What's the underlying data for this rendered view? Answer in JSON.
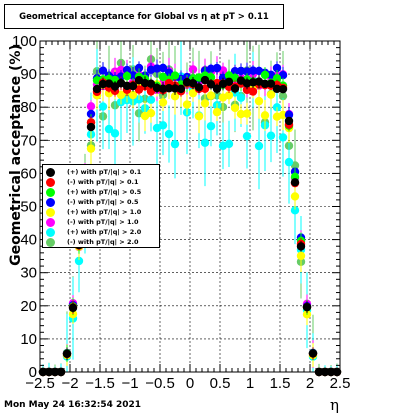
{
  "chart_data": {
    "type": "scatter",
    "title": "Geometrical acceptance for Global vs  η at pT > 0.11",
    "xlabel": "η",
    "ylabel": "Geometrical acceptance (%)",
    "xlim": [
      -2.5,
      2.5
    ],
    "ylim": [
      0,
      100
    ],
    "x_ticks": [
      "−2.5",
      "−2",
      "−1.5",
      "−1",
      "−0.5",
      "0",
      "0.5",
      "1",
      "1.5",
      "2",
      "2.5"
    ],
    "y_ticks": [
      "0",
      "10",
      "20",
      "30",
      "40",
      "50",
      "60",
      "70",
      "80",
      "90",
      "100"
    ],
    "grid": true,
    "legend_position": "left-middle",
    "series": [
      {
        "name": "(+) with pT/|q| > 0.1",
        "color": "#000000",
        "plateau": 87,
        "noise": 1.5,
        "err": 1.5
      },
      {
        "name": "(-) with pT/|q| > 0.1",
        "color": "#ff0000",
        "plateau": 86,
        "noise": 1.5,
        "err": 1.5
      },
      {
        "name": "(+) with pT/|q| > 0.5",
        "color": "#00ff00",
        "plateau": 88,
        "noise": 2,
        "err": 2
      },
      {
        "name": "(-) with pT/|q| > 0.5",
        "color": "#0000ff",
        "plateau": 90,
        "noise": 2,
        "err": 2
      },
      {
        "name": "(+) with pT/|q| > 1.0",
        "color": "#ffff00",
        "plateau": 82,
        "noise": 5,
        "err": 4
      },
      {
        "name": "(-) with pT/|q| > 1.0",
        "color": "#ff00ff",
        "plateau": 89,
        "noise": 4,
        "err": 3
      },
      {
        "name": "(+) with pT/|q| > 2.0",
        "color": "#00ffff",
        "plateau": 78,
        "noise": 12,
        "err": 10
      },
      {
        "name": "(-) with pT/|q| > 2.0",
        "color": "#66cc66",
        "plateau": 85,
        "noise": 10,
        "err": 10
      }
    ],
    "x_bins": {
      "min": -2.45,
      "max": 2.45,
      "count": 50
    },
    "edge_turn_on": {
      "start": 2.15,
      "end": 1.5
    },
    "colors": {
      "axis": "#000000",
      "grid": "#000000",
      "background": "#ffffff"
    }
  },
  "footer": {
    "date": "Mon May 24 16:32:54 2021"
  }
}
